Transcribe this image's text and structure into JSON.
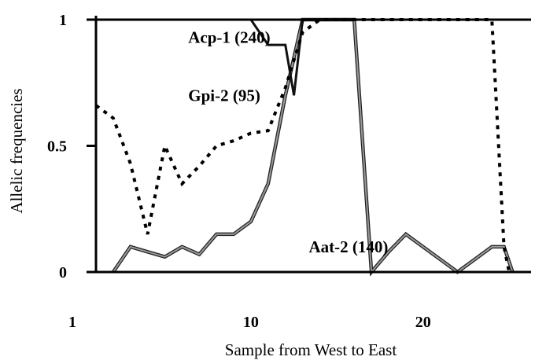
{
  "chart_data": {
    "type": "line",
    "title": "",
    "xlabel": "Sample from West to East",
    "ylabel": "Allelic frequencies",
    "xlim": [
      1,
      26
    ],
    "ylim": [
      0,
      1
    ],
    "x_ticks": [
      {
        "value": 1,
        "label": "1"
      },
      {
        "value": 10,
        "label": "10"
      },
      {
        "value": 20,
        "label": "20"
      }
    ],
    "y_ticks": [
      {
        "value": 0,
        "label": "0"
      },
      {
        "value": 0.5,
        "label": "0.5"
      },
      {
        "value": 1,
        "label": "1"
      }
    ],
    "grid": false,
    "series": [
      {
        "name": "Acp-1 (240)",
        "style": "solid-dark",
        "x": [
          2,
          3,
          4,
          5,
          6,
          7,
          8,
          9,
          10,
          11,
          12,
          12.5,
          13,
          14,
          15,
          16,
          17,
          18,
          19,
          20,
          21,
          22,
          23,
          24,
          25,
          26
        ],
        "y": [
          1,
          1,
          1,
          1,
          1,
          1,
          1,
          1,
          1,
          0.9,
          0.9,
          0.7,
          1,
          1,
          1,
          1,
          1,
          1,
          1,
          1,
          1,
          1,
          1,
          1,
          1,
          1
        ]
      },
      {
        "name": "Gpi-2 (95)",
        "style": "dotted",
        "x": [
          1,
          2,
          3,
          4,
          5,
          6,
          7,
          8,
          9,
          10,
          11,
          12,
          13,
          14,
          15,
          16,
          17,
          18,
          19,
          20,
          21,
          22,
          23,
          24,
          24.7,
          25
        ],
        "y": [
          0.66,
          0.61,
          0.43,
          0.15,
          0.5,
          0.35,
          0.42,
          0.5,
          0.52,
          0.55,
          0.56,
          0.73,
          0.95,
          1,
          1,
          1,
          1,
          1,
          1,
          1,
          1,
          1,
          1,
          1,
          0.1,
          0
        ]
      },
      {
        "name": "Aat-2 (140)",
        "style": "solid-gray",
        "x": [
          2,
          3,
          4,
          5,
          6,
          7,
          8,
          9,
          10,
          11,
          12,
          13,
          14,
          15,
          16,
          17,
          18,
          19,
          20,
          21,
          22,
          23,
          24,
          24.7,
          25.2
        ],
        "y": [
          0,
          0.1,
          0.08,
          0.06,
          0.1,
          0.07,
          0.15,
          0.15,
          0.2,
          0.35,
          0.7,
          1,
          1,
          1,
          1,
          0,
          0.08,
          0.15,
          0.1,
          0.05,
          0,
          0.05,
          0.1,
          0.1,
          0
        ]
      }
    ],
    "series_labels": [
      {
        "text": "Acp-1 (240)",
        "x": 7,
        "y": 0.93
      },
      {
        "text": "Gpi-2 (95)",
        "x": 7,
        "y": 0.7
      },
      {
        "text": "Aat-2 (140)",
        "x": 14,
        "y": 0.1
      }
    ],
    "colors": {
      "axis": "#000000",
      "acp": "#111111",
      "aat_outer": "#222222",
      "aat_inner": "#9a9a9a",
      "gpi": "#000000"
    }
  }
}
